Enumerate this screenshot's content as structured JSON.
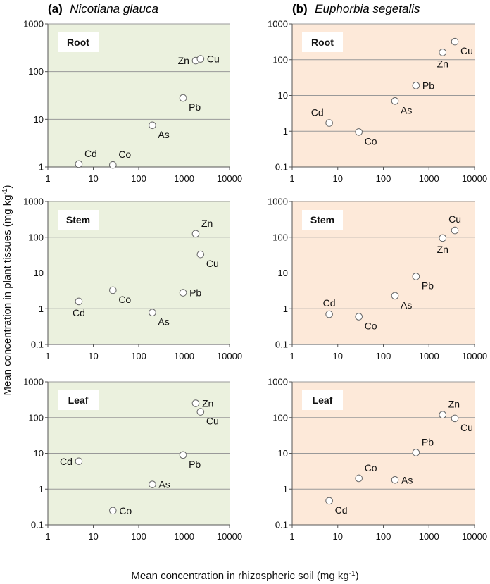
{
  "figure": {
    "xlabel": "Mean concentration in rhizospheric soil (mg kg",
    "xlabel_sup": "-1",
    "xlabel_end": ")",
    "ylabel": "Mean concentration in plant tissues (mg kg",
    "ylabel_sup": "-1",
    "ylabel_end": ")"
  },
  "columns": [
    {
      "letter": "(a)",
      "species": "Nicotiana glauca",
      "bg": "#ebf1de"
    },
    {
      "letter": "(b)",
      "species": "Euphorbia segetalis",
      "bg": "#fde9d9"
    }
  ],
  "colors": {
    "point_fill": "#ffffff",
    "point_stroke": "#666666",
    "grid": "#999999",
    "axis": "#555555"
  },
  "chart_data": [
    {
      "type": "scatter",
      "panel": "a-root",
      "column": 0,
      "row": 0,
      "tissue": "Root",
      "xscale": "log",
      "yscale": "log",
      "xlim": [
        1,
        10000
      ],
      "ylim": [
        1,
        1000
      ],
      "x_ticks": [
        "1",
        "10",
        "100",
        "1000",
        "10000"
      ],
      "y_ticks": [
        "1",
        "10",
        "100",
        "1000"
      ],
      "points": [
        {
          "label": "Cd",
          "x": 4.8,
          "y": 1.15,
          "pos": "tr"
        },
        {
          "label": "Co",
          "x": 27,
          "y": 1.1,
          "pos": "tr"
        },
        {
          "label": "As",
          "x": 200,
          "y": 7.5,
          "pos": "br"
        },
        {
          "label": "Pb",
          "x": 950,
          "y": 28,
          "pos": "br"
        },
        {
          "label": "Zn",
          "x": 1800,
          "y": 170,
          "pos": "l"
        },
        {
          "label": "Cu",
          "x": 2300,
          "y": 185,
          "pos": "r"
        }
      ]
    },
    {
      "type": "scatter",
      "panel": "b-root",
      "column": 1,
      "row": 0,
      "tissue": "Root",
      "xscale": "log",
      "yscale": "log",
      "xlim": [
        1,
        10000
      ],
      "ylim": [
        0.1,
        1000
      ],
      "x_ticks": [
        "1",
        "10",
        "100",
        "1000",
        "10000"
      ],
      "y_ticks": [
        "0.1",
        "1",
        "10",
        "100",
        "1000"
      ],
      "points": [
        {
          "label": "Cd",
          "x": 6.5,
          "y": 1.7,
          "pos": "tl"
        },
        {
          "label": "Co",
          "x": 29,
          "y": 0.95,
          "pos": "br"
        },
        {
          "label": "As",
          "x": 180,
          "y": 7,
          "pos": "br"
        },
        {
          "label": "Pb",
          "x": 520,
          "y": 19,
          "pos": "r"
        },
        {
          "label": "Zn",
          "x": 2000,
          "y": 160,
          "pos": "b"
        },
        {
          "label": "Cu",
          "x": 3700,
          "y": 320,
          "pos": "br"
        }
      ]
    },
    {
      "type": "scatter",
      "panel": "a-stem",
      "column": 0,
      "row": 1,
      "tissue": "Stem",
      "xscale": "log",
      "yscale": "log",
      "xlim": [
        1,
        10000
      ],
      "ylim": [
        0.1,
        1000
      ],
      "x_ticks": [
        "1",
        "10",
        "100",
        "1000",
        "10000"
      ],
      "y_ticks": [
        "0.1",
        "1",
        "10",
        "100",
        "1000"
      ],
      "points": [
        {
          "label": "Cd",
          "x": 4.8,
          "y": 1.6,
          "pos": "b"
        },
        {
          "label": "Co",
          "x": 27,
          "y": 3.3,
          "pos": "br"
        },
        {
          "label": "As",
          "x": 200,
          "y": 0.78,
          "pos": "br"
        },
        {
          "label": "Pb",
          "x": 950,
          "y": 2.8,
          "pos": "r"
        },
        {
          "label": "Zn",
          "x": 1800,
          "y": 125,
          "pos": "tr"
        },
        {
          "label": "Cu",
          "x": 2300,
          "y": 33,
          "pos": "br"
        }
      ]
    },
    {
      "type": "scatter",
      "panel": "b-stem",
      "column": 1,
      "row": 1,
      "tissue": "Stem",
      "xscale": "log",
      "yscale": "log",
      "xlim": [
        1,
        10000
      ],
      "ylim": [
        0.1,
        1000
      ],
      "x_ticks": [
        "1",
        "10",
        "100",
        "1000",
        "10000"
      ],
      "y_ticks": [
        "0.1",
        "1",
        "10",
        "100",
        "1000"
      ],
      "points": [
        {
          "label": "Cd",
          "x": 6.5,
          "y": 0.7,
          "pos": "t"
        },
        {
          "label": "Co",
          "x": 29,
          "y": 0.6,
          "pos": "br"
        },
        {
          "label": "As",
          "x": 180,
          "y": 2.3,
          "pos": "br"
        },
        {
          "label": "Pb",
          "x": 520,
          "y": 8,
          "pos": "br"
        },
        {
          "label": "Zn",
          "x": 2000,
          "y": 95,
          "pos": "b"
        },
        {
          "label": "Cu",
          "x": 3700,
          "y": 155,
          "pos": "t"
        }
      ]
    },
    {
      "type": "scatter",
      "panel": "a-leaf",
      "column": 0,
      "row": 2,
      "tissue": "Leaf",
      "xscale": "log",
      "yscale": "log",
      "xlim": [
        1,
        10000
      ],
      "ylim": [
        0.1,
        1000
      ],
      "x_ticks": [
        "1",
        "10",
        "100",
        "1000",
        "10000"
      ],
      "y_ticks": [
        "0.1",
        "1",
        "10",
        "100",
        "1000"
      ],
      "points": [
        {
          "label": "Cd",
          "x": 4.8,
          "y": 6,
          "pos": "l"
        },
        {
          "label": "Co",
          "x": 27,
          "y": 0.25,
          "pos": "r"
        },
        {
          "label": "As",
          "x": 200,
          "y": 1.35,
          "pos": "r"
        },
        {
          "label": "Pb",
          "x": 950,
          "y": 9,
          "pos": "br"
        },
        {
          "label": "Zn",
          "x": 1800,
          "y": 250,
          "pos": "r"
        },
        {
          "label": "Cu",
          "x": 2300,
          "y": 145,
          "pos": "br"
        }
      ]
    },
    {
      "type": "scatter",
      "panel": "b-leaf",
      "column": 1,
      "row": 2,
      "tissue": "Leaf",
      "xscale": "log",
      "yscale": "log",
      "xlim": [
        1,
        10000
      ],
      "ylim": [
        0.1,
        1000
      ],
      "x_ticks": [
        "1",
        "10",
        "100",
        "1000",
        "10000"
      ],
      "y_ticks": [
        "0.1",
        "1",
        "10",
        "100",
        "1000"
      ],
      "points": [
        {
          "label": "Cd",
          "x": 6.5,
          "y": 0.47,
          "pos": "br"
        },
        {
          "label": "Co",
          "x": 29,
          "y": 2,
          "pos": "tr"
        },
        {
          "label": "As",
          "x": 180,
          "y": 1.8,
          "pos": "r"
        },
        {
          "label": "Pb",
          "x": 520,
          "y": 10.5,
          "pos": "tr"
        },
        {
          "label": "Zn",
          "x": 2000,
          "y": 120,
          "pos": "tr"
        },
        {
          "label": "Cu",
          "x": 3700,
          "y": 95,
          "pos": "br"
        }
      ]
    }
  ]
}
